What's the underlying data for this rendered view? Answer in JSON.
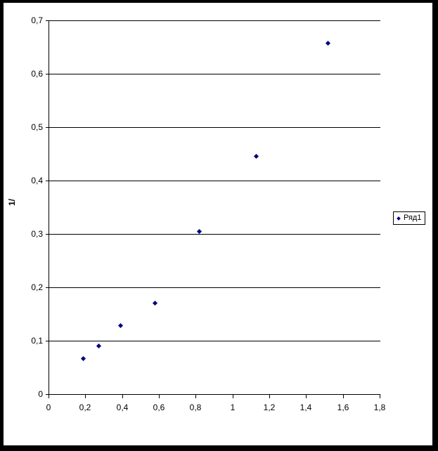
{
  "frame": {
    "background": "#ffffff",
    "border_color": "#000000"
  },
  "chart_data": {
    "type": "scatter",
    "title": "",
    "xlabel": "",
    "ylabel": "1/",
    "xlim": [
      0,
      1.8
    ],
    "ylim": [
      0,
      0.7
    ],
    "grid": true,
    "grid_color": "#000000",
    "axis_color": "#000000",
    "x_ticks": [
      "0",
      "0,2",
      "0,4",
      "0,6",
      "0,8",
      "1",
      "1,2",
      "1,4",
      "1,6",
      "1,8"
    ],
    "x_tick_values": [
      0,
      0.2,
      0.4,
      0.6,
      0.8,
      1.0,
      1.2,
      1.4,
      1.6,
      1.8
    ],
    "y_ticks": [
      "0",
      "0,1",
      "0,2",
      "0,3",
      "0,4",
      "0,5",
      "0,6",
      "0,7"
    ],
    "y_tick_values": [
      0,
      0.1,
      0.2,
      0.3,
      0.4,
      0.5,
      0.6,
      0.7
    ],
    "legend": {
      "position": "right",
      "border_color": "#000000"
    },
    "series": [
      {
        "name": "Ряд1",
        "marker": "diamond",
        "color": "#000080",
        "points": [
          [
            0.19,
            0.066
          ],
          [
            0.275,
            0.09
          ],
          [
            0.39,
            0.128
          ],
          [
            0.58,
            0.171
          ],
          [
            0.82,
            0.305
          ],
          [
            1.13,
            0.445
          ],
          [
            1.52,
            0.657
          ]
        ]
      }
    ]
  }
}
